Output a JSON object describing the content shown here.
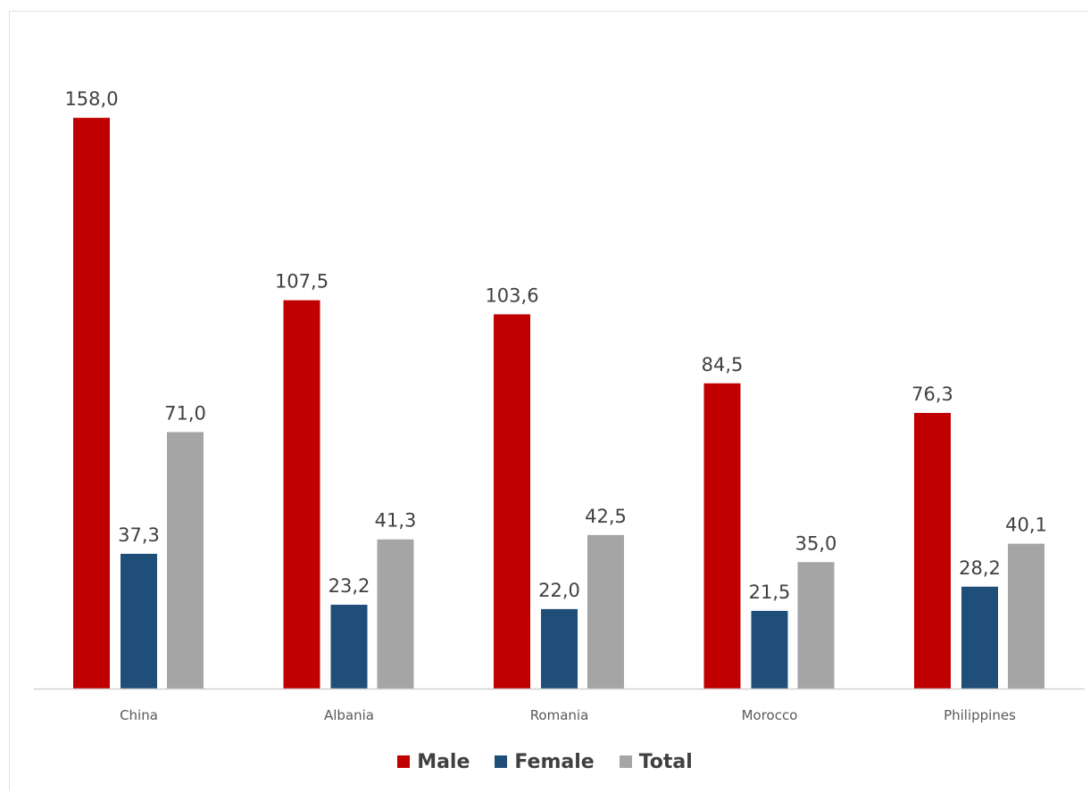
{
  "chart_data": {
    "type": "bar",
    "categories": [
      "China",
      "Albania",
      "Romania",
      "Morocco",
      "Philippines"
    ],
    "series": [
      {
        "name": "Male",
        "color": "#c00000",
        "values": [
          158.0,
          107.5,
          103.6,
          84.5,
          76.3
        ],
        "labels": [
          "158,0",
          "107,5",
          "103,6",
          "84,5",
          "76,3"
        ]
      },
      {
        "name": "Female",
        "color": "#1f4e79",
        "values": [
          37.3,
          23.2,
          22.0,
          21.5,
          28.2
        ],
        "labels": [
          "37,3",
          "23,2",
          "22,0",
          "21,5",
          "28,2"
        ]
      },
      {
        "name": "Total",
        "color": "#a5a5a5",
        "values": [
          71.0,
          41.3,
          42.5,
          35.0,
          40.1
        ],
        "labels": [
          "71,0",
          "41,3",
          "42,5",
          "35,0",
          "40,1"
        ]
      }
    ],
    "title": "",
    "xlabel": "",
    "ylabel": "",
    "ylim": [
      0,
      160
    ],
    "grid": false,
    "legend_position": "bottom"
  }
}
